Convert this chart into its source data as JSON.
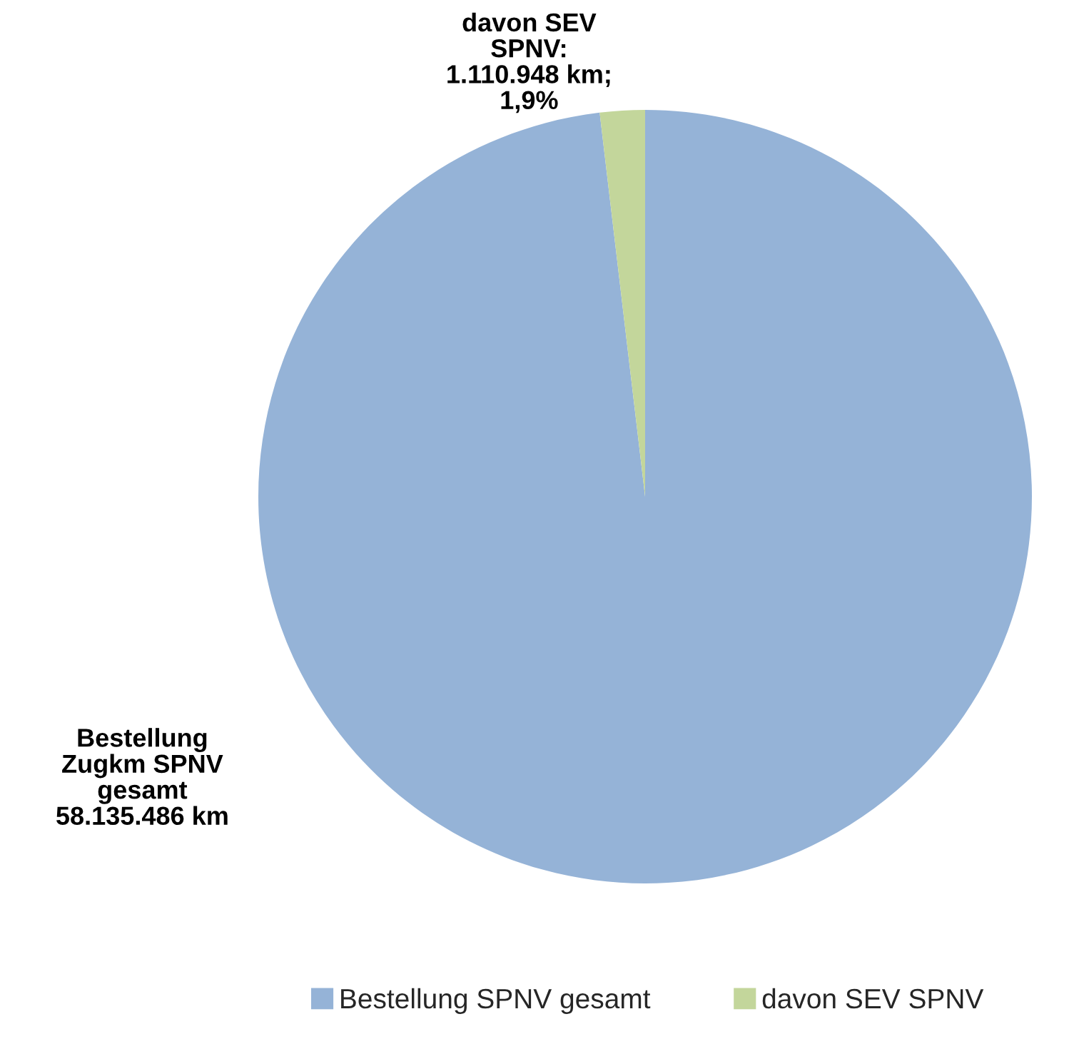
{
  "chart_data": {
    "type": "pie",
    "categories": [
      "Bestellung SPNV gesamt",
      "davon SEV SPNV"
    ],
    "values": [
      58135486,
      1110948
    ],
    "colors": [
      "#95b3d7",
      "#c3d69b"
    ],
    "value_labels": [
      "Bestellung\nZugkm SPNV\ngesamt\n58.135.486 km",
      "davon SEV\nSPNV:\n1.110.948 km;\n1,9%"
    ],
    "legend": "bottom"
  }
}
